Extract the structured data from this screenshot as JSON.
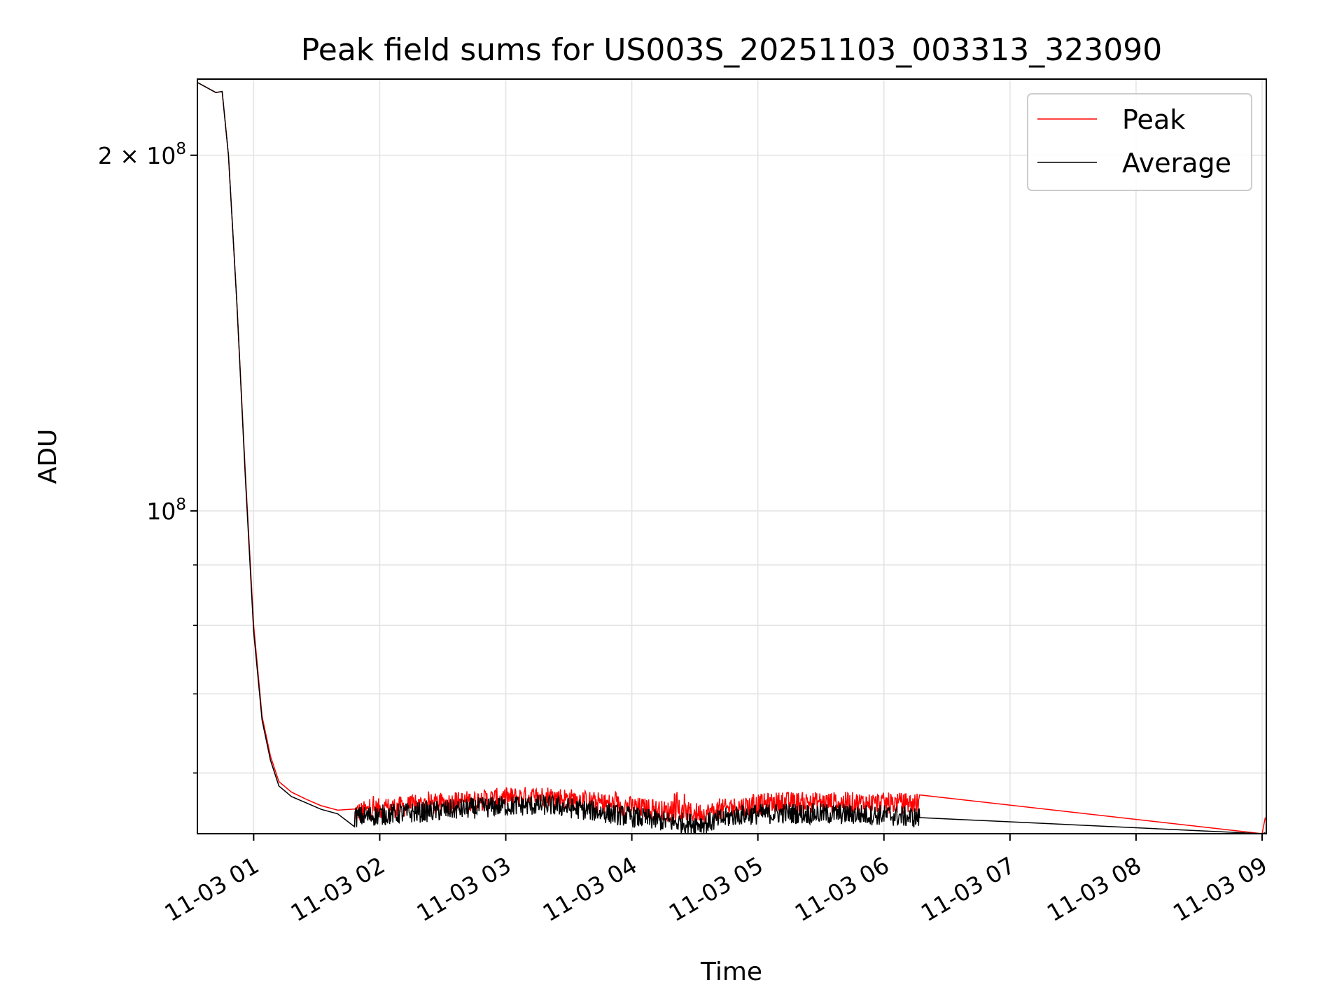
{
  "chart_data": {
    "type": "line",
    "title": "Peak field sums for US003S_20251103_003313_323090",
    "xlabel": "Time",
    "ylabel": "ADU",
    "y_scale": "log",
    "ylim": [
      53300000,
      232000000
    ],
    "xlim": [
      "2025-11-03 00:33:13",
      "2025-11-03 09:02:00"
    ],
    "x_tick_labels": [
      "11-03 01",
      "11-03 02",
      "11-03 03",
      "11-03 04",
      "11-03 05",
      "11-03 06",
      "11-03 07",
      "11-03 08",
      "11-03 09"
    ],
    "x_ticks": [
      "2025-11-03 01:00",
      "2025-11-03 02:00",
      "2025-11-03 03:00",
      "2025-11-03 04:00",
      "2025-11-03 05:00",
      "2025-11-03 06:00",
      "2025-11-03 07:00",
      "2025-11-03 08:00",
      "2025-11-03 09:00"
    ],
    "y_major_ticks": [
      {
        "value": 100000000,
        "label_base": "10",
        "label_exp": "8",
        "label_coef": ""
      },
      {
        "value": 200000000,
        "label_base": "10",
        "label_exp": "8",
        "label_coef": "2 × "
      }
    ],
    "y_minor_ticks": [
      60000000,
      70000000,
      80000000,
      90000000
    ],
    "grid": true,
    "legend_position": "top-right",
    "series": [
      {
        "name": "Peak",
        "color": "#ff0000",
        "x": [
          "2025-11-03 00:33:13",
          "2025-11-03 00:42:00",
          "2025-11-03 00:45:00",
          "2025-11-03 00:48:00",
          "2025-11-03 00:52:00",
          "2025-11-03 00:56:00",
          "2025-11-03 01:00:00",
          "2025-11-03 01:04:00",
          "2025-11-03 01:08:00",
          "2025-11-03 01:12:00",
          "2025-11-03 01:18:00",
          "2025-11-03 01:25:00",
          "2025-11-03 01:32:00",
          "2025-11-03 01:40:00",
          "2025-11-03 01:50:00",
          "2025-11-03 02:00:00",
          "2025-11-03 02:30:00",
          "2025-11-03 03:00:00",
          "2025-11-03 03:20:00",
          "2025-11-03 03:40:00",
          "2025-11-03 04:00:00",
          "2025-11-03 04:20:00",
          "2025-11-03 04:35:00",
          "2025-11-03 04:50:00",
          "2025-11-03 05:10:00",
          "2025-11-03 05:40:00",
          "2025-11-03 06:00:00",
          "2025-11-03 06:17:00",
          "2025-11-03 09:00:00",
          "2025-11-03 09:01:30"
        ],
        "y": [
          230500000,
          226000000,
          226500000,
          200000000,
          150000000,
          108000000,
          80000000,
          67000000,
          62000000,
          59000000,
          57800000,
          57000000,
          56300000,
          55800000,
          55800000,
          56200000,
          56800000,
          57400000,
          57600000,
          57000000,
          56400000,
          55800000,
          55700000,
          56400000,
          56900000,
          56900000,
          56800000,
          56800000,
          53300000,
          55000000
        ],
        "spikes_on_base_max": 57600000,
        "spike_window": [
          "2025-11-03 01:48:00",
          "2025-11-03 06:17:00"
        ]
      },
      {
        "name": "Average",
        "color": "#000000",
        "x": [
          "2025-11-03 00:33:13",
          "2025-11-03 00:42:00",
          "2025-11-03 00:45:00",
          "2025-11-03 00:48:00",
          "2025-11-03 00:52:00",
          "2025-11-03 00:56:00",
          "2025-11-03 01:00:00",
          "2025-11-03 01:04:00",
          "2025-11-03 01:08:00",
          "2025-11-03 01:12:00",
          "2025-11-03 01:18:00",
          "2025-11-03 01:25:00",
          "2025-11-03 01:32:00",
          "2025-11-03 01:40:00",
          "2025-11-03 01:50:00",
          "2025-11-03 02:00:00",
          "2025-11-03 02:30:00",
          "2025-11-03 03:00:00",
          "2025-11-03 03:20:00",
          "2025-11-03 03:40:00",
          "2025-11-03 04:00:00",
          "2025-11-03 04:20:00",
          "2025-11-03 04:35:00",
          "2025-11-03 04:50:00",
          "2025-11-03 05:10:00",
          "2025-11-03 05:40:00",
          "2025-11-03 06:00:00",
          "2025-11-03 06:17:00",
          "2025-11-03 09:00:00",
          "2025-11-03 09:01:30"
        ],
        "y": [
          230500000,
          226000000,
          226500000,
          200000000,
          150000000,
          107000000,
          79000000,
          66500000,
          61500000,
          58500000,
          57300000,
          56600000,
          55900000,
          55400000,
          55300000,
          55500000,
          56000000,
          56500000,
          56600000,
          56000000,
          55300000,
          54700000,
          54600000,
          55500000,
          55700000,
          55600000,
          55500000,
          55200000,
          53300000,
          53400000
        ]
      }
    ]
  }
}
